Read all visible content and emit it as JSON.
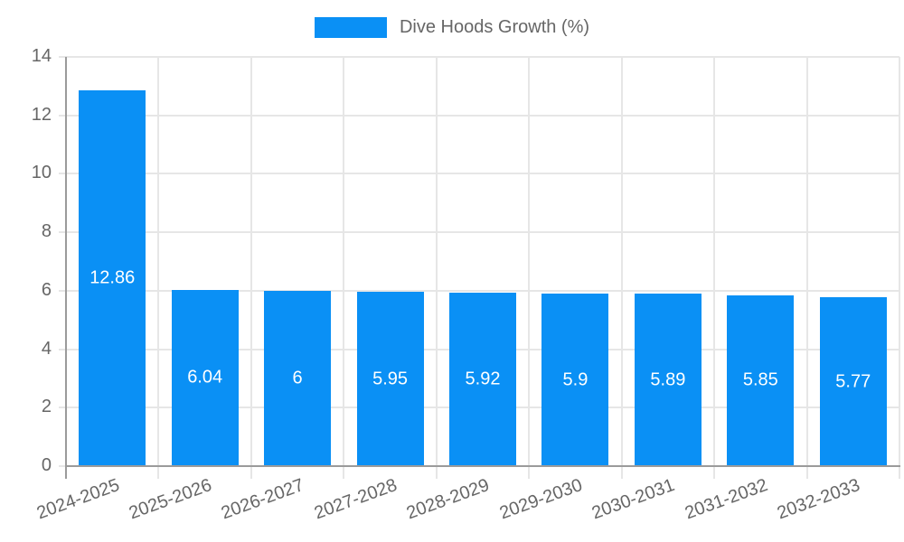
{
  "legend": {
    "items": [
      {
        "label": "Dive Hoods Growth (%)",
        "color": "#0a90f5"
      }
    ]
  },
  "chart_data": {
    "type": "bar",
    "title": "",
    "series_name": "Dive Hoods Growth (%)",
    "categories": [
      "2024-2025",
      "2025-2026",
      "2026-2027",
      "2027-2028",
      "2028-2029",
      "2029-2030",
      "2030-2031",
      "2031-2032",
      "2032-2033"
    ],
    "values": [
      12.86,
      6.04,
      6,
      5.95,
      5.92,
      5.9,
      5.89,
      5.85,
      5.77
    ],
    "value_labels": [
      "12.86",
      "6.04",
      "6",
      "5.95",
      "5.92",
      "5.9",
      "5.89",
      "5.85",
      "5.77"
    ],
    "xlabel": "",
    "ylabel": "",
    "ylim": [
      0,
      14
    ],
    "ytick_step": 2,
    "ytick_labels": [
      "0",
      "2",
      "4",
      "6",
      "8",
      "10",
      "12",
      "14"
    ],
    "grid": true,
    "legend_position": "top",
    "x_label_rotation_deg": -20,
    "colors": {
      "bar": "#0a90f5",
      "value_label": "#ffffff",
      "axis": "#9b9b9b",
      "grid": "#e6e6e6",
      "tick": "#d9d9d9",
      "text": "#666666",
      "background": "#ffffff"
    }
  }
}
